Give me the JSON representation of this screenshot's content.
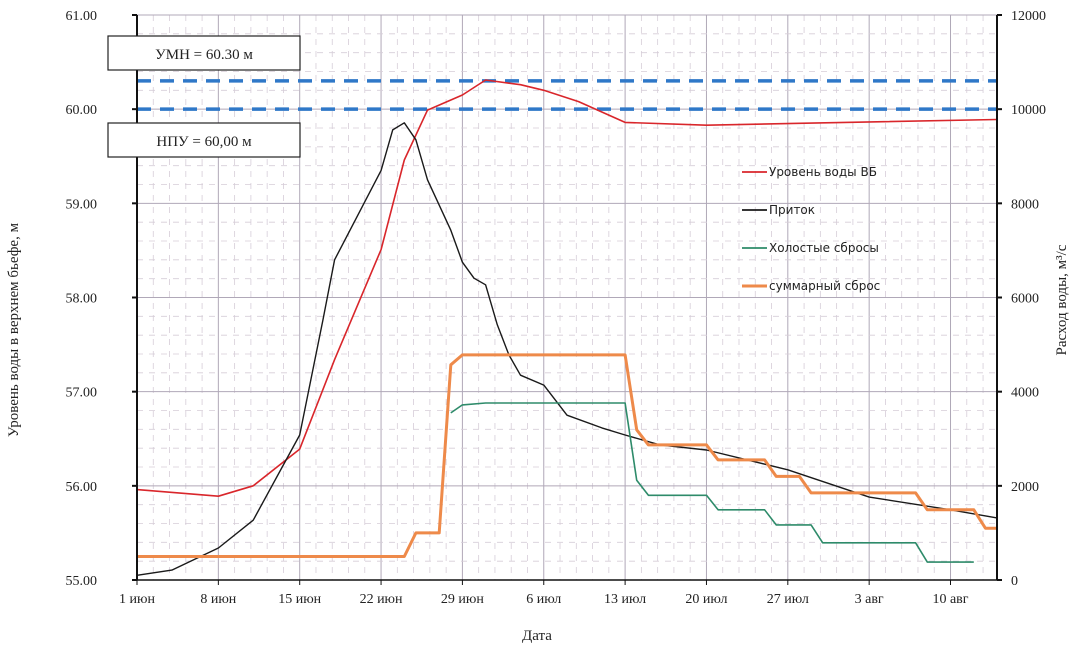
{
  "chart_data": {
    "type": "line",
    "xlabel": "Дата",
    "ylabel_left": "Уровень воды в верхнем бьефе, м",
    "ylabel_right": "Расход воды, м³/с",
    "xlim": [
      "06-01",
      "08-14"
    ],
    "ylim_left": [
      55,
      61
    ],
    "ylim_right": [
      0,
      12000
    ],
    "grid": true,
    "legend_placement": "right-center",
    "x_ticks": [
      {
        "date": "06-01",
        "label": "1 июн"
      },
      {
        "date": "06-08",
        "label": "8 июн"
      },
      {
        "date": "06-15",
        "label": "15 июн"
      },
      {
        "date": "06-22",
        "label": "22 июн"
      },
      {
        "date": "06-29",
        "label": "29 июн"
      },
      {
        "date": "07-06",
        "label": "6 июл"
      },
      {
        "date": "07-13",
        "label": "13 июл"
      },
      {
        "date": "07-20",
        "label": "20 июл"
      },
      {
        "date": "07-27",
        "label": "27 июл"
      },
      {
        "date": "08-03",
        "label": "3 авг"
      },
      {
        "date": "08-10",
        "label": "10 авг"
      }
    ],
    "y_left_ticks": [
      "55.00",
      "56.00",
      "57.00",
      "58.00",
      "59.00",
      "60.00",
      "61.00"
    ],
    "y_right_ticks": [
      "0",
      "2000",
      "4000",
      "6000",
      "8000",
      "10000",
      "12000"
    ],
    "reference_lines": [
      {
        "value": 60.3,
        "label": "УМН   = 60.30  м",
        "color": "#2f78c8"
      },
      {
        "value": 60.0,
        "label": "НПУ  = 60,00  м",
        "color": "#2f78c8"
      }
    ],
    "series": [
      {
        "name": "Уровень воды ВБ",
        "axis": "left",
        "color": "#d9262b",
        "width": 1.6,
        "points": [
          [
            "06-01",
            55.96
          ],
          [
            "06-08",
            55.89
          ],
          [
            "06-11",
            56.0
          ],
          [
            "06-15",
            56.39
          ],
          [
            "06-18",
            57.34
          ],
          [
            "06-22",
            58.51
          ],
          [
            "06-24",
            59.46
          ],
          [
            "06-26",
            59.99
          ],
          [
            "06-29",
            60.15
          ],
          [
            "07-01",
            60.31
          ],
          [
            "07-04",
            60.26
          ],
          [
            "07-06",
            60.2
          ],
          [
            "07-09",
            60.08
          ],
          [
            "07-13",
            59.86
          ],
          [
            "07-20",
            59.83
          ],
          [
            "07-28",
            59.85
          ],
          [
            "08-14",
            59.89
          ]
        ]
      },
      {
        "name": "Приток",
        "axis": "right",
        "color": "#1a1a1a",
        "width": 1.4,
        "points": [
          [
            "06-01",
            100
          ],
          [
            "06-04",
            210
          ],
          [
            "06-08",
            680
          ],
          [
            "06-11",
            1270
          ],
          [
            "06-15",
            3080
          ],
          [
            "06-17",
            5520
          ],
          [
            "06-18",
            6800
          ],
          [
            "06-22",
            8700
          ],
          [
            "06-23",
            9560
          ],
          [
            "06-24",
            9710
          ],
          [
            "06-25",
            9350
          ],
          [
            "06-26",
            8500
          ],
          [
            "06-28",
            7430
          ],
          [
            "06-29",
            6750
          ],
          [
            "06-30",
            6410
          ],
          [
            "07-01",
            6270
          ],
          [
            "07-02",
            5420
          ],
          [
            "07-03",
            4780
          ],
          [
            "07-04",
            4350
          ],
          [
            "07-06",
            4140
          ],
          [
            "07-08",
            3500
          ],
          [
            "07-11",
            3230
          ],
          [
            "07-13",
            3080
          ],
          [
            "07-16",
            2870
          ],
          [
            "07-20",
            2760
          ],
          [
            "07-27",
            2340
          ],
          [
            "08-03",
            1760
          ],
          [
            "08-10",
            1490
          ],
          [
            "08-14",
            1320
          ]
        ]
      },
      {
        "name": "Холостые сбросы",
        "axis": "right",
        "color": "#2e8b6a",
        "width": 1.6,
        "points": [
          [
            "06-28",
            3550
          ],
          [
            "06-29",
            3720
          ],
          [
            "07-01",
            3760
          ],
          [
            "07-13",
            3760
          ],
          [
            "07-14",
            2120
          ],
          [
            "07-15",
            1800
          ],
          [
            "07-20",
            1800
          ],
          [
            "07-21",
            1490
          ],
          [
            "07-25",
            1490
          ],
          [
            "07-26",
            1170
          ],
          [
            "07-29",
            1170
          ],
          [
            "07-30",
            790
          ],
          [
            "08-07",
            790
          ],
          [
            "08-08",
            380
          ],
          [
            "08-12",
            380
          ]
        ]
      },
      {
        "name": "суммарный сброс",
        "axis": "right",
        "color": "#ee8a4a",
        "width": 3,
        "points": [
          [
            "06-01",
            500
          ],
          [
            "06-24",
            500
          ],
          [
            "06-25",
            1000
          ],
          [
            "06-27",
            1000
          ],
          [
            "06-28",
            4570
          ],
          [
            "06-29",
            4780
          ],
          [
            "07-13",
            4780
          ],
          [
            "07-14",
            3190
          ],
          [
            "07-15",
            2870
          ],
          [
            "07-20",
            2870
          ],
          [
            "07-21",
            2550
          ],
          [
            "07-25",
            2550
          ],
          [
            "07-26",
            2200
          ],
          [
            "07-28",
            2200
          ],
          [
            "07-29",
            1850
          ],
          [
            "08-07",
            1850
          ],
          [
            "08-08",
            1490
          ],
          [
            "08-12",
            1490
          ],
          [
            "08-13",
            1100
          ],
          [
            "08-14",
            1100
          ]
        ]
      }
    ]
  }
}
